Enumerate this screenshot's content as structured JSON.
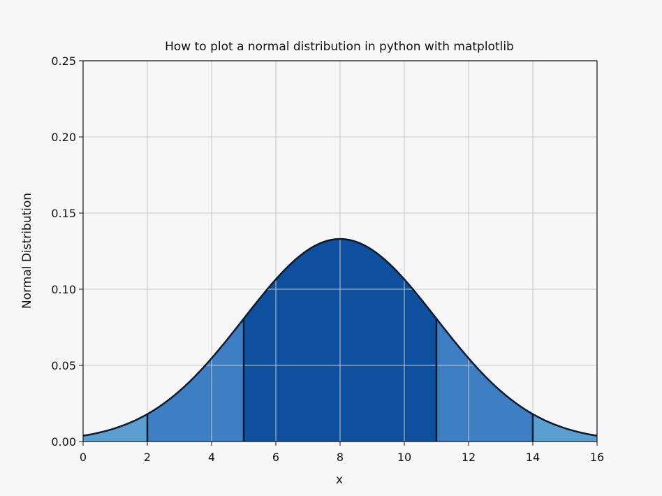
{
  "chart_data": {
    "type": "area",
    "title": "How to plot a normal distribution in python with matplotlib",
    "xlabel": "x",
    "ylabel": "Normal Distribution",
    "xlim": [
      0,
      16
    ],
    "ylim": [
      0,
      0.25
    ],
    "xticks": [
      0,
      2,
      4,
      6,
      8,
      10,
      12,
      14,
      16
    ],
    "xtick_labels": [
      "0",
      "2",
      "4",
      "6",
      "8",
      "10",
      "12",
      "14",
      "16"
    ],
    "yticks": [
      0,
      0.05,
      0.1,
      0.15,
      0.2,
      0.25
    ],
    "ytick_labels": [
      "0.00",
      "0.05",
      "0.10",
      "0.15",
      "0.20",
      "0.25"
    ],
    "grid": true,
    "distribution": {
      "mean": 8,
      "std": 3
    },
    "shaded_regions": [
      {
        "from": 0,
        "to": 2,
        "color": "#5b9fd1"
      },
      {
        "from": 2,
        "to": 5,
        "color": "#3d7fc2"
      },
      {
        "from": 5,
        "to": 11,
        "color": "#0e4f9e"
      },
      {
        "from": 11,
        "to": 14,
        "color": "#3d7fc2"
      },
      {
        "from": 14,
        "to": 16,
        "color": "#5b9fd1"
      }
    ],
    "boundary_lines": [
      2,
      5,
      11,
      14
    ],
    "curve_color": "#0a1a33"
  }
}
